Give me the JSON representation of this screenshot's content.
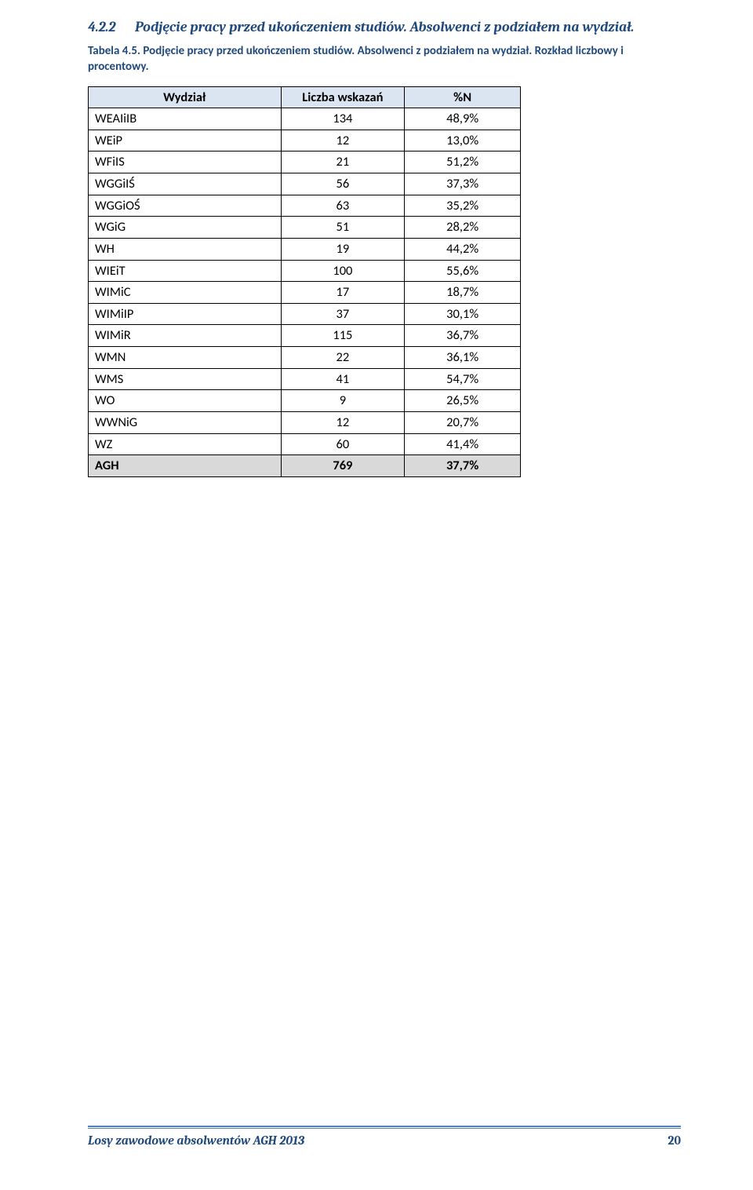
{
  "heading": {
    "number": "4.2.2",
    "text": "Podjęcie pracy przed ukończeniem studiów. Absolwenci z podziałem na wydział."
  },
  "caption": "Tabela 4.5. Podjęcie pracy przed ukończeniem studiów. Absolwenci z podziałem na wydział. Rozkład liczbowy i procentowy.",
  "table": {
    "columns": [
      "Wydział",
      "Liczba wskazań",
      "%N"
    ],
    "rows": [
      {
        "label": "WEAIiIB",
        "count": "134",
        "pct": "48,9%"
      },
      {
        "label": "WEiP",
        "count": "12",
        "pct": "13,0%"
      },
      {
        "label": "WFiIS",
        "count": "21",
        "pct": "51,2%"
      },
      {
        "label": "WGGiIŚ",
        "count": "56",
        "pct": "37,3%"
      },
      {
        "label": "WGGiOŚ",
        "count": "63",
        "pct": "35,2%"
      },
      {
        "label": "WGiG",
        "count": "51",
        "pct": "28,2%"
      },
      {
        "label": "WH",
        "count": "19",
        "pct": "44,2%"
      },
      {
        "label": "WIEiT",
        "count": "100",
        "pct": "55,6%"
      },
      {
        "label": "WIMiC",
        "count": "17",
        "pct": "18,7%"
      },
      {
        "label": "WIMiIP",
        "count": "37",
        "pct": "30,1%"
      },
      {
        "label": "WIMiR",
        "count": "115",
        "pct": "36,7%"
      },
      {
        "label": "WMN",
        "count": "22",
        "pct": "36,1%"
      },
      {
        "label": "WMS",
        "count": "41",
        "pct": "54,7%"
      },
      {
        "label": "WO",
        "count": "9",
        "pct": "26,5%"
      },
      {
        "label": "WWNiG",
        "count": "12",
        "pct": "20,7%"
      },
      {
        "label": "WZ",
        "count": "60",
        "pct": "41,4%"
      }
    ],
    "total": {
      "label": "AGH",
      "count": "769",
      "pct": "37,7%"
    }
  },
  "footer": {
    "text": "Losy zawodowe absolwentów AGH 2013",
    "page": "20"
  }
}
